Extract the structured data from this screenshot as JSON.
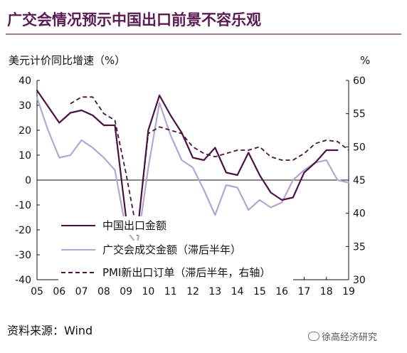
{
  "header": {
    "title": "广交会情况预示中国出口前景不容乐观"
  },
  "footer": {
    "source": "资料来源：Wind",
    "watermark": "徐高经济研究"
  },
  "chart_data": {
    "type": "line",
    "ylabel_left": "美元计价同比增速（%）",
    "ylabel_right": "%",
    "ylim_left": [
      -40,
      40
    ],
    "ylim_right": [
      30,
      60
    ],
    "yticks_left": [
      -40,
      -30,
      -20,
      -10,
      0,
      10,
      20,
      30,
      40
    ],
    "yticks_right": [
      30,
      35,
      40,
      45,
      50,
      55,
      60
    ],
    "xlim": [
      2005,
      2019
    ],
    "xticks": [
      "05",
      "06",
      "07",
      "08",
      "09",
      "10",
      "11",
      "12",
      "13",
      "14",
      "15",
      "16",
      "17",
      "18",
      "19"
    ],
    "legend_position": "bottom-center",
    "series": [
      {
        "name": "中国出口金额",
        "axis": "left",
        "style": "solid",
        "color": "#4b1242",
        "x": [
          2005.0,
          2006.0,
          2006.5,
          2007.0,
          2007.5,
          2008.0,
          2008.5,
          2009.0,
          2009.5,
          2010.0,
          2010.5,
          2011.0,
          2011.5,
          2012.0,
          2012.5,
          2013.0,
          2013.5,
          2014.0,
          2014.5,
          2015.0,
          2015.5,
          2016.0,
          2016.5,
          2017.0,
          2017.5,
          2018.0,
          2018.5
        ],
        "y": [
          36,
          23,
          27,
          28,
          26,
          22,
          22,
          -15,
          -22,
          20,
          34,
          26,
          19,
          9,
          8,
          13,
          3,
          2,
          11,
          2,
          -5,
          -8,
          -7,
          3,
          7,
          12,
          12
        ]
      },
      {
        "name": "广交会成交金额（滞后半年）",
        "axis": "left",
        "style": "solid",
        "color": "#b6a5d2",
        "x": [
          2005.0,
          2005.5,
          2006.0,
          2006.5,
          2007.0,
          2007.5,
          2008.0,
          2008.5,
          2009.0,
          2009.5,
          2010.0,
          2010.5,
          2011.0,
          2011.5,
          2012.0,
          2012.5,
          2013.0,
          2013.5,
          2014.0,
          2014.5,
          2015.0,
          2015.5,
          2016.0,
          2016.5,
          2017.0,
          2017.5,
          2018.0,
          2018.5,
          2019.0
        ],
        "y": [
          33,
          20,
          9,
          10,
          16,
          13,
          9,
          4,
          -20,
          -26,
          5,
          31,
          18,
          8,
          5,
          -4,
          -14,
          -2,
          -3,
          -12,
          -8,
          -11,
          -9,
          0,
          4,
          7,
          8,
          0,
          -1
        ]
      },
      {
        "name": "PMI新出口订单（滞后半年，右轴）",
        "axis": "right",
        "style": "dashed",
        "color": "#4b1242",
        "x": [
          2006.5,
          2007.0,
          2007.5,
          2008.0,
          2008.5,
          2009.0,
          2009.5,
          2010.0,
          2010.5,
          2011.0,
          2011.5,
          2012.0,
          2012.5,
          2013.0,
          2013.5,
          2014.0,
          2014.5,
          2015.0,
          2015.5,
          2016.0,
          2016.5,
          2017.0,
          2017.5,
          2018.0,
          2018.5,
          2019.0
        ],
        "y": [
          56.5,
          57.5,
          57.5,
          55,
          54,
          46,
          37,
          52,
          53,
          52.5,
          52,
          50,
          49,
          48.5,
          49,
          49.5,
          49.5,
          50,
          48.5,
          48,
          48,
          49,
          50.5,
          51,
          50.8,
          49.5
        ]
      }
    ]
  }
}
